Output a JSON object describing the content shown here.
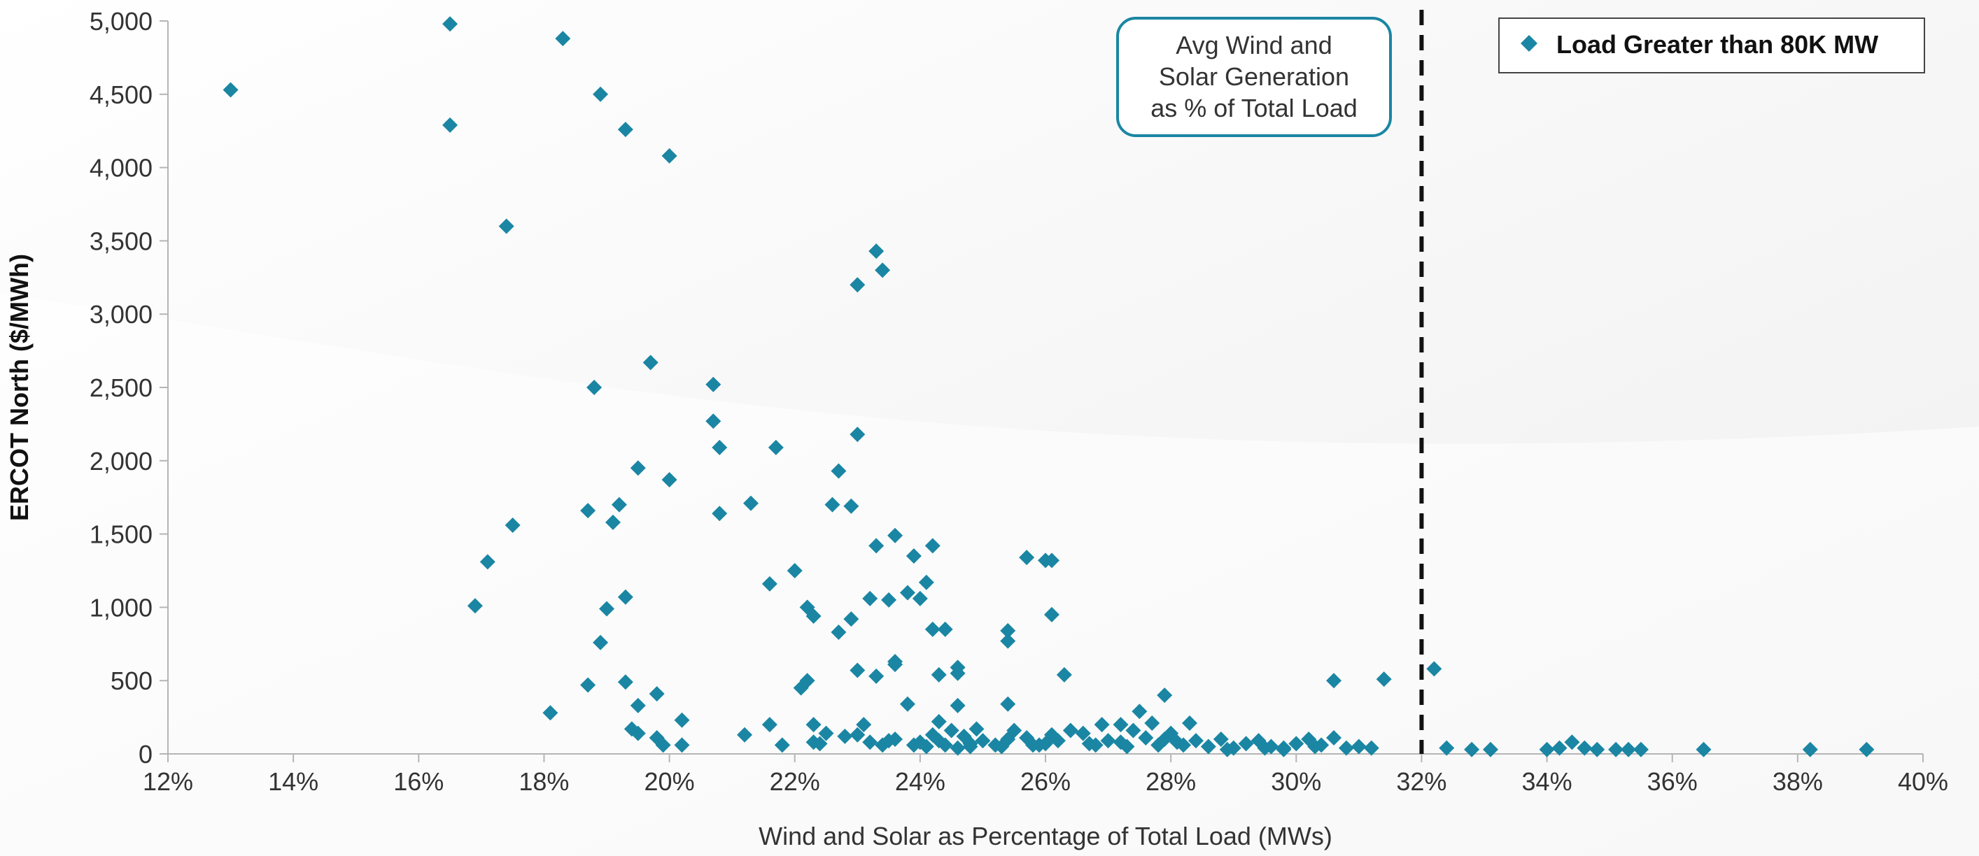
{
  "colors": {
    "marker": "#1a86a3",
    "callout_border": "#1a86a3",
    "reference_line": "#111111",
    "axis": "#b5b5b5"
  },
  "legend": {
    "label": "Load Greater than 80K MW",
    "position": "top-right"
  },
  "callout": {
    "lines": [
      "Avg Wind and",
      "Solar Generation",
      "as % of Total Load"
    ]
  },
  "chart_data": {
    "type": "scatter",
    "title": "",
    "xlabel": "Wind and Solar as Percentage of Total Load (MWs)",
    "ylabel": "ERCOT North ($/MWh)",
    "xlim": [
      12,
      40
    ],
    "ylim": [
      0,
      5000
    ],
    "x_ticks": [
      12,
      14,
      16,
      18,
      20,
      22,
      24,
      26,
      28,
      30,
      32,
      34,
      36,
      38,
      40
    ],
    "x_tick_labels": [
      "12%",
      "14%",
      "16%",
      "18%",
      "20%",
      "22%",
      "24%",
      "26%",
      "28%",
      "30%",
      "32%",
      "34%",
      "36%",
      "38%",
      "40%"
    ],
    "y_ticks": [
      0,
      500,
      1000,
      1500,
      2000,
      2500,
      3000,
      3500,
      4000,
      4500,
      5000
    ],
    "y_tick_labels": [
      "0",
      "500",
      "1,000",
      "1,500",
      "2,000",
      "2,500",
      "3,000",
      "3,500",
      "4,000",
      "4,500",
      "5,000"
    ],
    "reference_line_x": 32,
    "grid": false,
    "series": [
      {
        "name": "Load Greater than 80K MW",
        "points": [
          [
            13.0,
            4530
          ],
          [
            16.5,
            4980
          ],
          [
            16.5,
            4290
          ],
          [
            18.3,
            4880
          ],
          [
            18.9,
            4500
          ],
          [
            19.3,
            4260
          ],
          [
            20.0,
            4080
          ],
          [
            17.4,
            3600
          ],
          [
            23.3,
            3430
          ],
          [
            23.4,
            3300
          ],
          [
            23.0,
            3200
          ],
          [
            19.7,
            2670
          ],
          [
            18.8,
            2500
          ],
          [
            20.7,
            2520
          ],
          [
            20.7,
            2270
          ],
          [
            20.8,
            2090
          ],
          [
            21.7,
            2090
          ],
          [
            23.0,
            2180
          ],
          [
            19.5,
            1950
          ],
          [
            20.0,
            1870
          ],
          [
            22.7,
            1930
          ],
          [
            22.6,
            1700
          ],
          [
            22.9,
            1690
          ],
          [
            21.3,
            1710
          ],
          [
            20.8,
            1640
          ],
          [
            18.7,
            1660
          ],
          [
            19.1,
            1580
          ],
          [
            19.2,
            1700
          ],
          [
            17.5,
            1560
          ],
          [
            17.1,
            1310
          ],
          [
            23.3,
            1420
          ],
          [
            23.6,
            1490
          ],
          [
            23.9,
            1350
          ],
          [
            24.2,
            1420
          ],
          [
            25.7,
            1340
          ],
          [
            26.0,
            1320
          ],
          [
            26.1,
            1320
          ],
          [
            22.0,
            1250
          ],
          [
            21.6,
            1160
          ],
          [
            24.1,
            1170
          ],
          [
            23.2,
            1060
          ],
          [
            23.5,
            1050
          ],
          [
            23.8,
            1100
          ],
          [
            24.0,
            1060
          ],
          [
            19.3,
            1070
          ],
          [
            19.0,
            990
          ],
          [
            16.9,
            1010
          ],
          [
            22.2,
            1000
          ],
          [
            22.3,
            940
          ],
          [
            22.9,
            920
          ],
          [
            22.7,
            830
          ],
          [
            24.2,
            850
          ],
          [
            24.4,
            850
          ],
          [
            25.4,
            840
          ],
          [
            25.4,
            770
          ],
          [
            26.1,
            950
          ],
          [
            18.9,
            760
          ],
          [
            23.0,
            570
          ],
          [
            23.6,
            630
          ],
          [
            23.6,
            610
          ],
          [
            24.3,
            540
          ],
          [
            24.6,
            590
          ],
          [
            24.6,
            550
          ],
          [
            26.3,
            540
          ],
          [
            19.3,
            490
          ],
          [
            18.7,
            470
          ],
          [
            19.8,
            410
          ],
          [
            22.2,
            500
          ],
          [
            22.1,
            450
          ],
          [
            23.3,
            530
          ],
          [
            23.8,
            340
          ],
          [
            24.6,
            330
          ],
          [
            25.4,
            340
          ],
          [
            27.9,
            400
          ],
          [
            30.6,
            500
          ],
          [
            31.4,
            510
          ],
          [
            32.2,
            580
          ],
          [
            18.1,
            280
          ],
          [
            19.5,
            330
          ],
          [
            20.2,
            230
          ],
          [
            21.6,
            200
          ],
          [
            22.3,
            200
          ],
          [
            23.1,
            200
          ],
          [
            24.3,
            220
          ],
          [
            27.5,
            290
          ],
          [
            27.7,
            210
          ],
          [
            27.2,
            200
          ],
          [
            26.9,
            200
          ],
          [
            28.3,
            210
          ],
          [
            19.4,
            170
          ],
          [
            19.5,
            140
          ],
          [
            19.8,
            110
          ],
          [
            19.9,
            60
          ],
          [
            20.2,
            60
          ],
          [
            21.2,
            130
          ],
          [
            21.8,
            60
          ],
          [
            22.3,
            80
          ],
          [
            22.5,
            140
          ],
          [
            22.8,
            120
          ],
          [
            23.0,
            130
          ],
          [
            23.2,
            80
          ],
          [
            23.4,
            60
          ],
          [
            23.6,
            100
          ],
          [
            23.9,
            60
          ],
          [
            24.1,
            50
          ],
          [
            24.2,
            130
          ],
          [
            24.3,
            90
          ],
          [
            24.4,
            60
          ],
          [
            24.5,
            160
          ],
          [
            24.7,
            120
          ],
          [
            24.8,
            50
          ],
          [
            24.9,
            170
          ],
          [
            25.0,
            90
          ],
          [
            25.2,
            60
          ],
          [
            25.4,
            100
          ],
          [
            25.5,
            160
          ],
          [
            25.7,
            110
          ],
          [
            25.9,
            60
          ],
          [
            26.1,
            130
          ],
          [
            26.2,
            90
          ],
          [
            26.4,
            160
          ],
          [
            26.6,
            140
          ],
          [
            26.8,
            60
          ],
          [
            27.0,
            90
          ],
          [
            27.2,
            80
          ],
          [
            27.4,
            160
          ],
          [
            27.6,
            110
          ],
          [
            27.8,
            60
          ],
          [
            28.0,
            140
          ],
          [
            28.2,
            60
          ],
          [
            28.4,
            90
          ],
          [
            28.6,
            50
          ],
          [
            28.8,
            100
          ],
          [
            29.0,
            40
          ],
          [
            29.2,
            70
          ],
          [
            29.4,
            90
          ],
          [
            29.6,
            50
          ],
          [
            29.8,
            40
          ],
          [
            30.0,
            70
          ],
          [
            30.2,
            100
          ],
          [
            30.4,
            60
          ],
          [
            30.6,
            110
          ],
          [
            30.8,
            40
          ],
          [
            31.0,
            50
          ],
          [
            31.2,
            40
          ],
          [
            32.4,
            40
          ],
          [
            32.8,
            30
          ],
          [
            33.1,
            30
          ],
          [
            34.0,
            30
          ],
          [
            34.2,
            40
          ],
          [
            34.4,
            80
          ],
          [
            34.6,
            40
          ],
          [
            34.8,
            30
          ],
          [
            35.1,
            30
          ],
          [
            35.3,
            30
          ],
          [
            35.5,
            30
          ],
          [
            36.5,
            30
          ],
          [
            38.2,
            30
          ],
          [
            39.1,
            30
          ],
          [
            23.5,
            90
          ],
          [
            24.0,
            80
          ],
          [
            24.8,
            70
          ],
          [
            25.3,
            50
          ],
          [
            26.0,
            70
          ],
          [
            26.7,
            70
          ],
          [
            27.3,
            50
          ],
          [
            28.1,
            80
          ],
          [
            28.9,
            30
          ],
          [
            29.5,
            40
          ],
          [
            30.3,
            50
          ],
          [
            22.4,
            70
          ],
          [
            24.6,
            40
          ],
          [
            27.9,
            100
          ],
          [
            25.8,
            60
          ],
          [
            29.8,
            30
          ]
        ]
      }
    ]
  }
}
